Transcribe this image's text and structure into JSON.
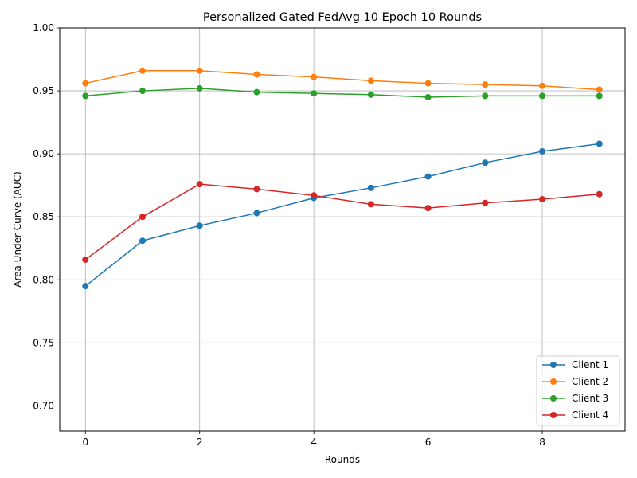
{
  "chart_data": {
    "type": "line",
    "title": "Personalized Gated FedAvg 10 Epoch 10 Rounds",
    "xlabel": "Rounds",
    "ylabel": "Area Under Curve (AUC)",
    "xlim": [
      -0.45,
      9.45
    ],
    "ylim": [
      0.68,
      1.0
    ],
    "xticks": [
      0,
      2,
      4,
      6,
      8
    ],
    "yticks": [
      0.7,
      0.75,
      0.8,
      0.85,
      0.9,
      0.95,
      1.0
    ],
    "xtick_labels": [
      "0",
      "2",
      "4",
      "6",
      "8"
    ],
    "ytick_labels": [
      "0.70",
      "0.75",
      "0.80",
      "0.85",
      "0.90",
      "0.95",
      "1.00"
    ],
    "grid": true,
    "legend_position": "lower-right",
    "x": [
      0,
      1,
      2,
      3,
      4,
      5,
      6,
      7,
      8,
      9
    ],
    "series": [
      {
        "name": "Client 1",
        "color": "#1f77b4",
        "values": [
          0.795,
          0.831,
          0.843,
          0.853,
          0.865,
          0.873,
          0.882,
          0.893,
          0.902,
          0.908
        ]
      },
      {
        "name": "Client 2",
        "color": "#ff7f0e",
        "values": [
          0.956,
          0.966,
          0.966,
          0.963,
          0.961,
          0.958,
          0.956,
          0.955,
          0.954,
          0.951
        ]
      },
      {
        "name": "Client 3",
        "color": "#2ca02c",
        "values": [
          0.946,
          0.95,
          0.952,
          0.949,
          0.948,
          0.947,
          0.945,
          0.946,
          0.946,
          0.946
        ]
      },
      {
        "name": "Client 4",
        "color": "#d62728",
        "values": [
          0.816,
          0.85,
          0.876,
          0.872,
          0.867,
          0.86,
          0.857,
          0.861,
          0.864,
          0.868
        ]
      }
    ]
  }
}
